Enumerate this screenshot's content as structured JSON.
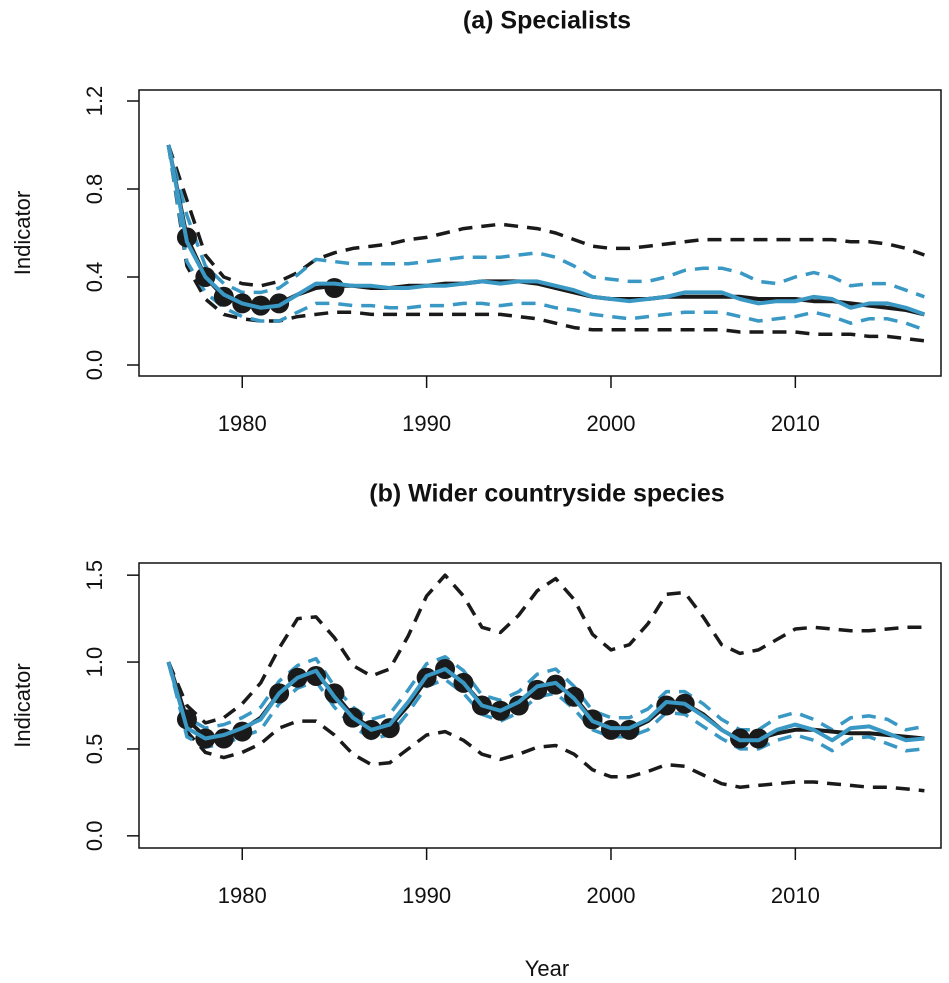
{
  "chart_data": [
    {
      "type": "line",
      "title": "(a) Specialists",
      "ylabel": "Indicator",
      "x": [
        1976,
        1977,
        1978,
        1979,
        1980,
        1981,
        1982,
        1983,
        1984,
        1985,
        1986,
        1987,
        1988,
        1989,
        1990,
        1991,
        1992,
        1993,
        1994,
        1995,
        1996,
        1997,
        1998,
        1999,
        2000,
        2001,
        2002,
        2003,
        2004,
        2005,
        2006,
        2007,
        2008,
        2009,
        2010,
        2011,
        2012,
        2013,
        2014,
        2015,
        2016,
        2017
      ],
      "xlim": [
        1974.4,
        2017.9
      ],
      "xticks": [
        1980,
        1990,
        2000,
        2010
      ],
      "ylim": [
        -0.05,
        1.25
      ],
      "yticks": [
        {
          "value": 0,
          "label": "0.0"
        },
        0.4,
        0.8,
        1.2
      ],
      "series": [
        {
          "color": "#1a1a1a",
          "style": "dashed",
          "values": [
            1.0,
            0.75,
            0.5,
            0.4,
            0.37,
            0.36,
            0.38,
            0.42,
            0.48,
            0.51,
            0.53,
            0.54,
            0.55,
            0.57,
            0.58,
            0.6,
            0.62,
            0.63,
            0.64,
            0.63,
            0.62,
            0.6,
            0.57,
            0.54,
            0.53,
            0.53,
            0.54,
            0.55,
            0.56,
            0.57,
            0.57,
            0.57,
            0.57,
            0.57,
            0.57,
            0.57,
            0.57,
            0.56,
            0.56,
            0.55,
            0.53,
            0.5
          ]
        },
        {
          "color": "#1a1a1a",
          "style": "dashed",
          "values": [
            1.0,
            0.45,
            0.3,
            0.23,
            0.21,
            0.2,
            0.2,
            0.22,
            0.23,
            0.24,
            0.24,
            0.23,
            0.23,
            0.23,
            0.23,
            0.23,
            0.23,
            0.23,
            0.23,
            0.22,
            0.21,
            0.19,
            0.17,
            0.16,
            0.16,
            0.16,
            0.16,
            0.16,
            0.16,
            0.16,
            0.16,
            0.15,
            0.15,
            0.15,
            0.15,
            0.14,
            0.14,
            0.14,
            0.13,
            0.13,
            0.12,
            0.11
          ]
        },
        {
          "color": "#3a98c4",
          "style": "dashed",
          "values": [
            1.0,
            0.68,
            0.45,
            0.37,
            0.33,
            0.33,
            0.35,
            0.41,
            0.48,
            0.47,
            0.46,
            0.46,
            0.46,
            0.46,
            0.47,
            0.48,
            0.49,
            0.49,
            0.49,
            0.5,
            0.51,
            0.49,
            0.45,
            0.4,
            0.39,
            0.38,
            0.38,
            0.4,
            0.43,
            0.44,
            0.44,
            0.42,
            0.38,
            0.37,
            0.4,
            0.42,
            0.4,
            0.36,
            0.37,
            0.37,
            0.34,
            0.31
          ]
        },
        {
          "color": "#3a98c4",
          "style": "dashed",
          "values": [
            1.0,
            0.47,
            0.33,
            0.26,
            0.22,
            0.2,
            0.2,
            0.24,
            0.28,
            0.28,
            0.27,
            0.27,
            0.26,
            0.26,
            0.27,
            0.27,
            0.28,
            0.28,
            0.27,
            0.28,
            0.28,
            0.26,
            0.25,
            0.23,
            0.22,
            0.21,
            0.22,
            0.23,
            0.24,
            0.24,
            0.24,
            0.22,
            0.2,
            0.21,
            0.22,
            0.24,
            0.22,
            0.19,
            0.21,
            0.21,
            0.19,
            0.16
          ]
        },
        {
          "color": "#1a1a1a",
          "style": "solid",
          "values": [
            1.0,
            0.58,
            0.4,
            0.31,
            0.28,
            0.27,
            0.28,
            0.32,
            0.35,
            0.36,
            0.36,
            0.35,
            0.35,
            0.36,
            0.36,
            0.37,
            0.37,
            0.38,
            0.38,
            0.38,
            0.37,
            0.35,
            0.33,
            0.31,
            0.3,
            0.3,
            0.3,
            0.31,
            0.31,
            0.31,
            0.31,
            0.31,
            0.3,
            0.3,
            0.3,
            0.29,
            0.29,
            0.28,
            0.27,
            0.26,
            0.25,
            0.23
          ]
        },
        {
          "color": "#1a1a1a",
          "style": "points",
          "x": [
            1977,
            1978,
            1979,
            1980,
            1981,
            1982,
            1985
          ],
          "values": [
            0.58,
            0.4,
            0.31,
            0.28,
            0.27,
            0.28,
            0.35
          ]
        },
        {
          "color": "#3a98c4",
          "style": "solid",
          "values": [
            1.0,
            0.56,
            0.4,
            0.32,
            0.28,
            0.26,
            0.27,
            0.32,
            0.37,
            0.37,
            0.36,
            0.36,
            0.35,
            0.35,
            0.36,
            0.36,
            0.37,
            0.38,
            0.37,
            0.38,
            0.38,
            0.36,
            0.34,
            0.31,
            0.3,
            0.29,
            0.3,
            0.31,
            0.33,
            0.33,
            0.33,
            0.3,
            0.28,
            0.29,
            0.29,
            0.31,
            0.3,
            0.26,
            0.28,
            0.28,
            0.26,
            0.23
          ]
        }
      ]
    },
    {
      "type": "line",
      "title": "(b) Wider countryside species",
      "ylabel": "Indicator",
      "xlabel": "Year",
      "x": [
        1976,
        1977,
        1978,
        1979,
        1980,
        1981,
        1982,
        1983,
        1984,
        1985,
        1986,
        1987,
        1988,
        1989,
        1990,
        1991,
        1992,
        1993,
        1994,
        1995,
        1996,
        1997,
        1998,
        1999,
        2000,
        2001,
        2002,
        2003,
        2004,
        2005,
        2006,
        2007,
        2008,
        2009,
        2010,
        2011,
        2012,
        2013,
        2014,
        2015,
        2016,
        2017
      ],
      "xlim": [
        1974.4,
        2017.9
      ],
      "xticks": [
        1980,
        1990,
        2000,
        2010
      ],
      "ylim": [
        -0.07,
        1.57
      ],
      "yticks": [
        {
          "value": 0,
          "label": "0.0"
        },
        0.5,
        {
          "value": 1,
          "label": "1.0"
        },
        1.5
      ],
      "series": [
        {
          "color": "#1a1a1a",
          "style": "dashed",
          "values": [
            1.0,
            0.75,
            0.65,
            0.68,
            0.76,
            0.88,
            1.08,
            1.25,
            1.26,
            1.14,
            0.98,
            0.92,
            0.96,
            1.15,
            1.38,
            1.5,
            1.38,
            1.2,
            1.17,
            1.27,
            1.41,
            1.48,
            1.36,
            1.16,
            1.07,
            1.1,
            1.22,
            1.39,
            1.4,
            1.26,
            1.1,
            1.05,
            1.07,
            1.13,
            1.19,
            1.2,
            1.19,
            1.18,
            1.18,
            1.19,
            1.2,
            1.2
          ]
        },
        {
          "color": "#1a1a1a",
          "style": "dashed",
          "values": [
            1.0,
            0.6,
            0.48,
            0.45,
            0.48,
            0.53,
            0.62,
            0.66,
            0.66,
            0.58,
            0.47,
            0.41,
            0.42,
            0.5,
            0.58,
            0.6,
            0.55,
            0.47,
            0.44,
            0.47,
            0.51,
            0.52,
            0.47,
            0.38,
            0.34,
            0.34,
            0.37,
            0.41,
            0.4,
            0.35,
            0.3,
            0.28,
            0.29,
            0.3,
            0.31,
            0.31,
            0.3,
            0.29,
            0.28,
            0.28,
            0.27,
            0.26
          ]
        },
        {
          "color": "#3a98c4",
          "style": "dashed",
          "values": [
            1.0,
            0.68,
            0.62,
            0.64,
            0.68,
            0.74,
            0.89,
            0.98,
            1.02,
            0.86,
            0.74,
            0.67,
            0.7,
            0.84,
            0.99,
            1.03,
            0.95,
            0.81,
            0.78,
            0.83,
            0.93,
            0.96,
            0.86,
            0.72,
            0.68,
            0.68,
            0.73,
            0.83,
            0.83,
            0.76,
            0.67,
            0.61,
            0.61,
            0.68,
            0.71,
            0.67,
            0.61,
            0.68,
            0.69,
            0.67,
            0.61,
            0.63
          ]
        },
        {
          "color": "#3a98c4",
          "style": "dashed",
          "values": [
            1.0,
            0.57,
            0.51,
            0.53,
            0.57,
            0.61,
            0.76,
            0.85,
            0.89,
            0.74,
            0.63,
            0.56,
            0.58,
            0.71,
            0.86,
            0.9,
            0.82,
            0.7,
            0.66,
            0.71,
            0.8,
            0.82,
            0.73,
            0.61,
            0.57,
            0.57,
            0.61,
            0.71,
            0.7,
            0.63,
            0.56,
            0.5,
            0.5,
            0.55,
            0.58,
            0.55,
            0.49,
            0.56,
            0.57,
            0.53,
            0.49,
            0.5
          ]
        },
        {
          "color": "#1a1a1a",
          "style": "solid",
          "values": [
            1.0,
            0.67,
            0.57,
            0.57,
            0.61,
            0.68,
            0.82,
            0.91,
            0.93,
            0.82,
            0.69,
            0.62,
            0.63,
            0.75,
            0.9,
            0.96,
            0.88,
            0.76,
            0.72,
            0.76,
            0.84,
            0.87,
            0.8,
            0.67,
            0.61,
            0.61,
            0.66,
            0.75,
            0.76,
            0.7,
            0.61,
            0.55,
            0.56,
            0.59,
            0.61,
            0.61,
            0.6,
            0.59,
            0.59,
            0.58,
            0.57,
            0.56
          ]
        },
        {
          "color": "#1a1a1a",
          "style": "points",
          "x": [
            1977,
            1978,
            1979,
            1980,
            1982,
            1983,
            1984,
            1985,
            1986,
            1987,
            1988,
            1990,
            1991,
            1992,
            1993,
            1994,
            1995,
            1996,
            1997,
            1998,
            1999,
            2000,
            2001,
            2003,
            2004,
            2007,
            2008
          ],
          "values": [
            0.67,
            0.56,
            0.56,
            0.6,
            0.82,
            0.91,
            0.92,
            0.82,
            0.68,
            0.61,
            0.62,
            0.91,
            0.96,
            0.88,
            0.75,
            0.72,
            0.75,
            0.84,
            0.87,
            0.8,
            0.67,
            0.61,
            0.61,
            0.75,
            0.76,
            0.56,
            0.56
          ]
        },
        {
          "color": "#3a98c4",
          "style": "solid",
          "values": [
            1.0,
            0.62,
            0.56,
            0.58,
            0.62,
            0.67,
            0.82,
            0.91,
            0.95,
            0.8,
            0.68,
            0.61,
            0.64,
            0.77,
            0.92,
            0.96,
            0.88,
            0.75,
            0.72,
            0.77,
            0.86,
            0.88,
            0.79,
            0.66,
            0.62,
            0.62,
            0.67,
            0.77,
            0.76,
            0.69,
            0.61,
            0.55,
            0.55,
            0.61,
            0.64,
            0.61,
            0.55,
            0.62,
            0.63,
            0.59,
            0.55,
            0.56
          ]
        }
      ]
    }
  ]
}
